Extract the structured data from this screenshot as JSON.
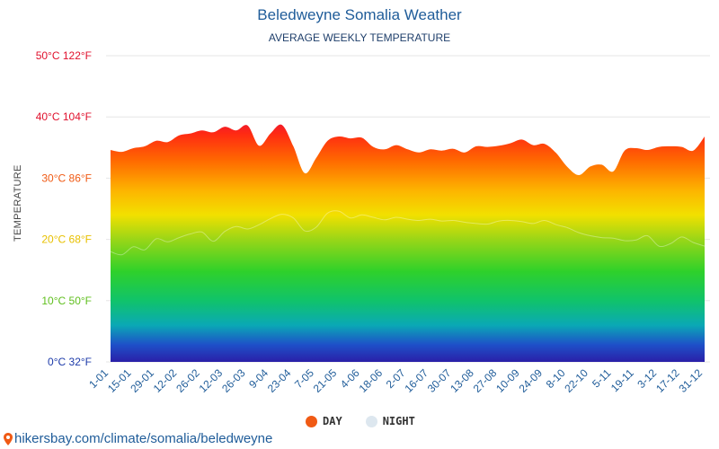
{
  "title": "Beledweyne Somalia Weather",
  "subtitle": "AVERAGE WEEKLY TEMPERATURE",
  "ylabel": "TEMPERATURE",
  "legend": {
    "day": "DAY",
    "night": "NIGHT"
  },
  "footer": "hikersbay.com/climate/somalia/beledweyne",
  "colors": {
    "title": "#1f5c99",
    "day_legend": "#f05a14",
    "night_legend": "#dde7ef",
    "grid": "#e6e6e6"
  },
  "chart_data": {
    "type": "area",
    "title": "Beledweyne Somalia Weather",
    "subtitle": "AVERAGE WEEKLY TEMPERATURE",
    "ylabel": "TEMPERATURE",
    "ylim": [
      0,
      50
    ],
    "yticks": [
      {
        "value": 0,
        "label": "0°C 32°F",
        "color": "#1c3aa9"
      },
      {
        "value": 10,
        "label": "10°C 50°F",
        "color": "#5fbf1d"
      },
      {
        "value": 20,
        "label": "20°C 68°F",
        "color": "#e8c000"
      },
      {
        "value": 30,
        "label": "30°C 86°F",
        "color": "#f05a14"
      },
      {
        "value": 40,
        "label": "40°C 104°F",
        "color": "#e0102c"
      },
      {
        "value": 50,
        "label": "50°C 122°F",
        "color": "#e0102c"
      }
    ],
    "xticks": [
      "1-01",
      "15-01",
      "29-01",
      "12-02",
      "26-02",
      "12-03",
      "26-03",
      "9-04",
      "23-04",
      "7-05",
      "21-05",
      "4-06",
      "18-06",
      "2-07",
      "16-07",
      "30-07",
      "13-08",
      "27-08",
      "10-09",
      "24-09",
      "8-10",
      "22-10",
      "5-11",
      "19-11",
      "3-12",
      "17-12",
      "31-12"
    ],
    "grid": true,
    "legend_position": "bottom",
    "series": [
      {
        "name": "DAY",
        "values": [
          34.6,
          34.3,
          34.9,
          35.2,
          36.1,
          35.9,
          37.0,
          37.3,
          37.8,
          37.5,
          38.4,
          37.8,
          38.6,
          35.3,
          37.3,
          38.7,
          35.2,
          30.8,
          33.3,
          36.1,
          36.8,
          36.5,
          36.6,
          35.1,
          34.7,
          35.4,
          34.7,
          34.2,
          34.7,
          34.5,
          34.8,
          34.2,
          35.2,
          35.1,
          35.3,
          35.7,
          36.3,
          35.4,
          35.6,
          34.1,
          31.8,
          30.5,
          31.9,
          32.2,
          31.1,
          34.5,
          34.9,
          34.6,
          35.1,
          35.2,
          35.1,
          34.5,
          36.8
        ]
      },
      {
        "name": "NIGHT",
        "values": [
          18.0,
          17.5,
          18.8,
          18.3,
          20.1,
          19.6,
          20.3,
          20.9,
          21.2,
          19.7,
          21.3,
          22.1,
          21.7,
          22.4,
          23.4,
          24.1,
          23.5,
          21.4,
          22.0,
          24.3,
          24.6,
          23.5,
          24.0,
          23.6,
          23.2,
          23.6,
          23.3,
          23.1,
          23.3,
          23.0,
          23.1,
          22.8,
          22.6,
          22.5,
          23.0,
          23.1,
          22.9,
          22.6,
          23.1,
          22.4,
          21.9,
          21.1,
          20.6,
          20.3,
          20.2,
          19.8,
          19.9,
          20.6,
          18.9,
          19.3,
          20.4,
          19.5,
          18.9
        ]
      }
    ]
  }
}
